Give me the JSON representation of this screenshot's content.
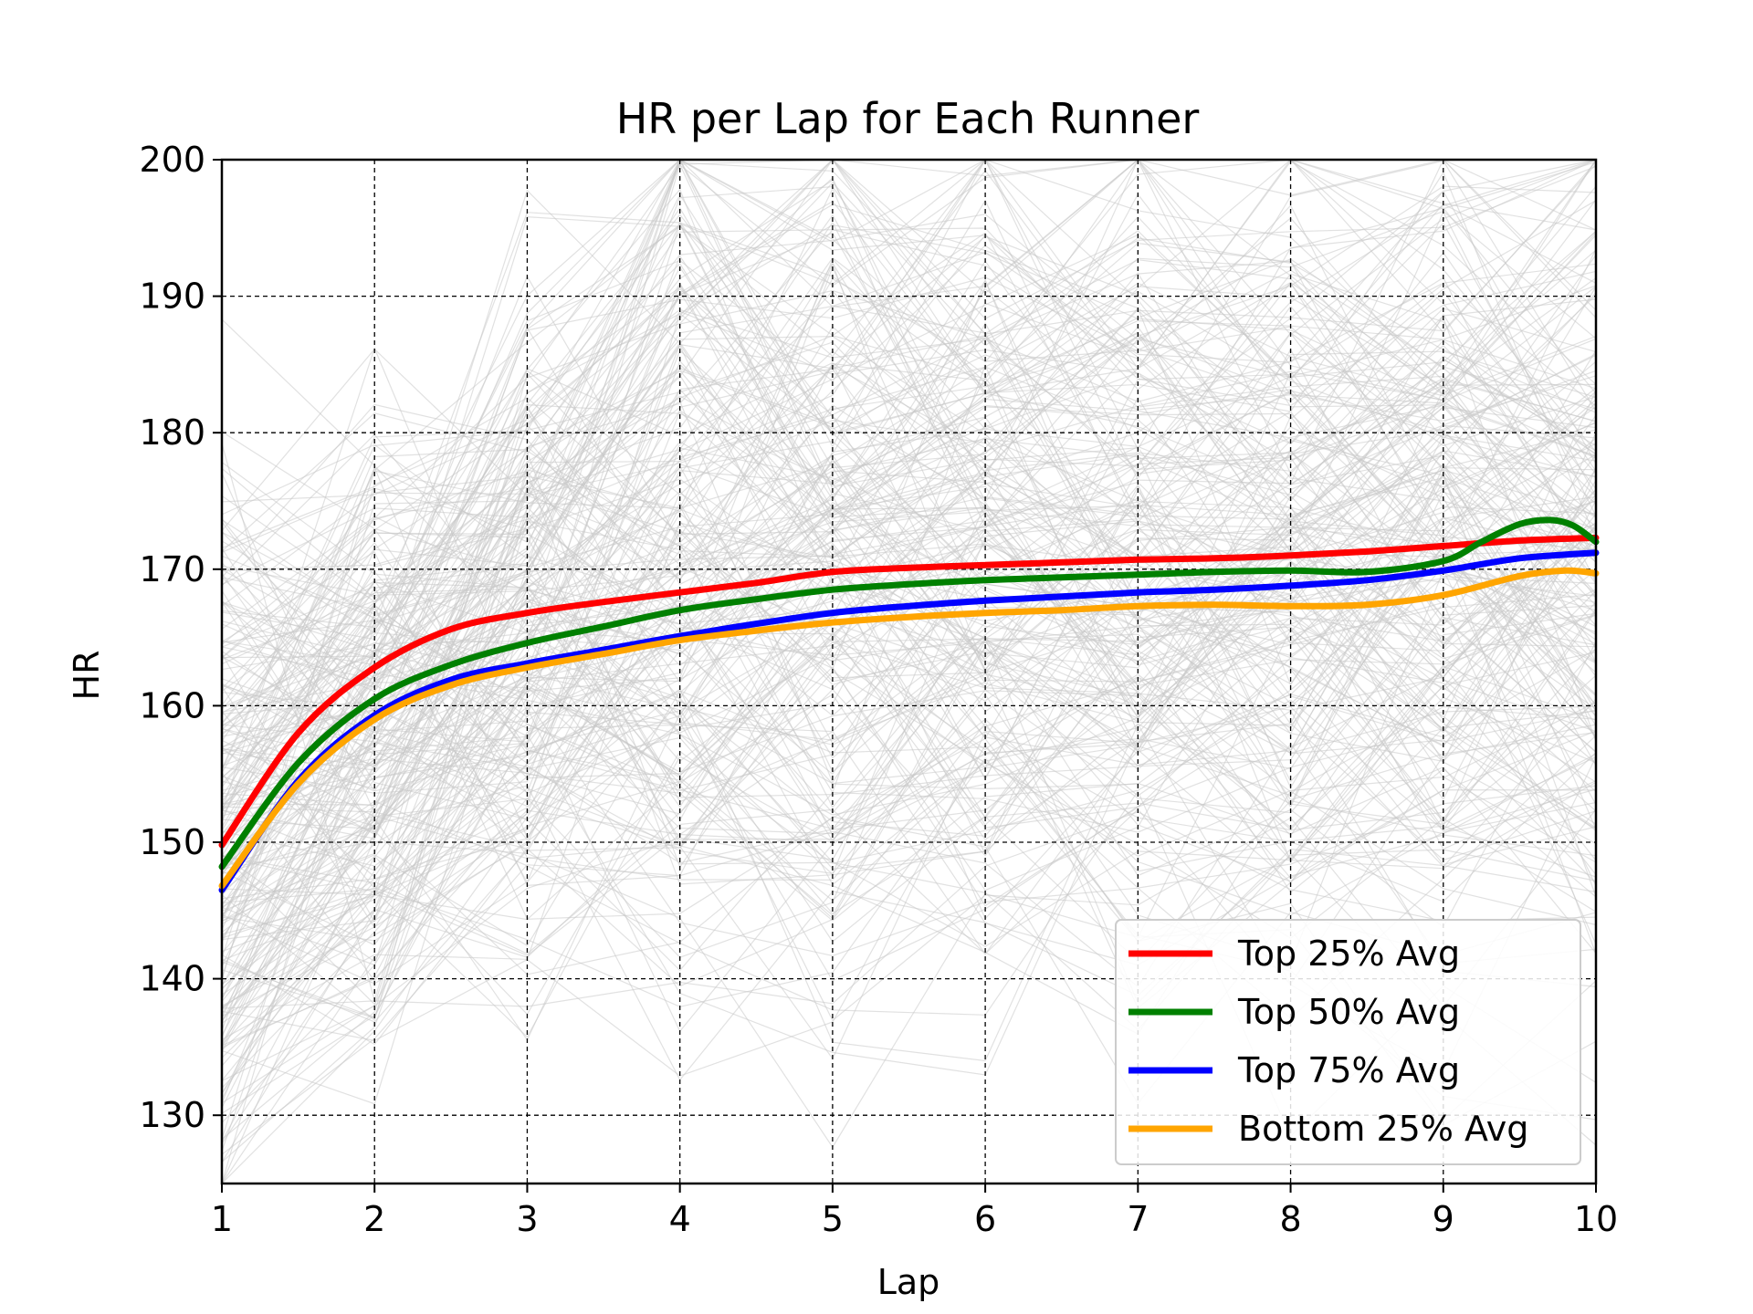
{
  "chart_data": {
    "type": "line",
    "title": "HR per Lap for Each Runner",
    "xlabel": "Lap",
    "ylabel": "HR",
    "xlim": [
      1,
      10
    ],
    "ylim": [
      125,
      200
    ],
    "xticks": [
      "1",
      "2",
      "3",
      "4",
      "5",
      "6",
      "7",
      "8",
      "9",
      "10"
    ],
    "yticks": [
      "130",
      "140",
      "150",
      "160",
      "170",
      "180",
      "190",
      "200"
    ],
    "grid": true,
    "legend_position": "lower-right",
    "background_note_color": "#c8c8c8",
    "series": [
      {
        "name": "Top 25% Avg",
        "color": "#ff0000",
        "x": [
          1,
          1.5,
          2,
          2.5,
          3,
          3.5,
          4,
          4.5,
          5,
          5.5,
          6,
          6.5,
          7,
          7.5,
          8,
          8.5,
          9,
          9.5,
          10
        ],
        "values": [
          149.8,
          158.0,
          162.8,
          165.6,
          166.8,
          167.6,
          168.3,
          169.0,
          169.8,
          170.1,
          170.3,
          170.5,
          170.7,
          170.8,
          171.0,
          171.3,
          171.7,
          172.1,
          172.3
        ]
      },
      {
        "name": "Top 50% Avg",
        "color": "#008000",
        "x": [
          1,
          1.5,
          2,
          2.5,
          3,
          3.5,
          4,
          4.5,
          5,
          5.5,
          6,
          6.5,
          7,
          7.5,
          8,
          8.5,
          9,
          9.25,
          9.5,
          9.7,
          9.85,
          10
        ],
        "values": [
          148.2,
          155.8,
          160.5,
          163.0,
          164.6,
          165.8,
          167.0,
          167.8,
          168.5,
          168.9,
          169.2,
          169.4,
          169.6,
          169.8,
          169.9,
          169.8,
          170.6,
          172.0,
          173.3,
          173.6,
          173.2,
          172.0
        ]
      },
      {
        "name": "Top 75% Avg",
        "color": "#0000ff",
        "x": [
          1,
          1.5,
          2,
          2.5,
          3,
          3.5,
          4,
          4.5,
          5,
          5.5,
          6,
          6.5,
          7,
          7.5,
          8,
          8.5,
          9,
          9.5,
          10
        ],
        "values": [
          146.5,
          154.5,
          159.3,
          161.9,
          163.1,
          164.1,
          165.1,
          166.0,
          166.8,
          167.3,
          167.7,
          168.0,
          168.3,
          168.5,
          168.8,
          169.2,
          169.9,
          170.8,
          171.2
        ]
      },
      {
        "name": "Bottom 25% Avg",
        "color": "#ffa500",
        "x": [
          1,
          1.5,
          2,
          2.5,
          3,
          3.5,
          4,
          4.5,
          5,
          5.5,
          6,
          6.5,
          7,
          7.5,
          8,
          8.5,
          9,
          9.5,
          9.8,
          10
        ],
        "values": [
          146.8,
          154.3,
          159.0,
          161.5,
          162.8,
          163.8,
          164.8,
          165.5,
          166.1,
          166.5,
          166.8,
          167.0,
          167.3,
          167.4,
          167.3,
          167.4,
          168.1,
          169.5,
          169.9,
          169.7
        ]
      }
    ]
  }
}
